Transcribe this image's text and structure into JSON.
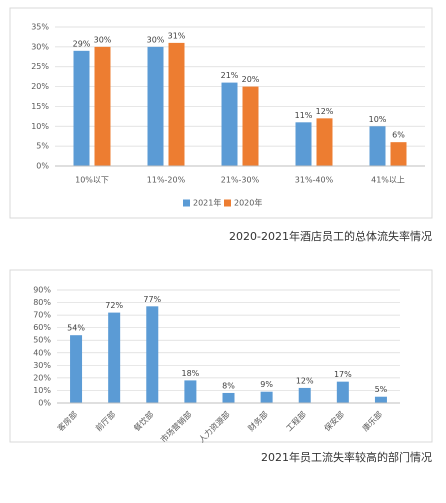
{
  "chart_data": [
    {
      "type": "bar",
      "title": "2020-2021年酒店员工的总体流失率情况",
      "categories": [
        "10%以下",
        "11%-20%",
        "21%-30%",
        "31%-40%",
        "41%以上"
      ],
      "series": [
        {
          "name": "2021年",
          "color": "#5b9bd5",
          "values": [
            29,
            30,
            21,
            11,
            10
          ],
          "value_labels": [
            "29%",
            "30%",
            "21%",
            "11%",
            "10%"
          ]
        },
        {
          "name": "2020年",
          "color": "#ed7d31",
          "values": [
            30,
            31,
            20,
            12,
            6
          ],
          "value_labels": [
            "30%",
            "31%",
            "20%",
            "12%",
            "6%"
          ]
        }
      ],
      "ylim": [
        0,
        35
      ],
      "yticks": [
        {
          "value": 0,
          "label": "0%"
        },
        {
          "value": 5,
          "label": "5%"
        },
        {
          "value": 10,
          "label": "10%"
        },
        {
          "value": 15,
          "label": "15%"
        },
        {
          "value": 20,
          "label": "20%"
        },
        {
          "value": 25,
          "label": "25%"
        },
        {
          "value": 30,
          "label": "30%"
        },
        {
          "value": 35,
          "label": "35%"
        }
      ],
      "grid": true,
      "legend": "bottom"
    },
    {
      "type": "bar",
      "title": "2021年员工流失率较高的部门情况",
      "categories": [
        "客房部",
        "前厅部",
        "餐饮部",
        "市场营销部",
        "人力资源部",
        "财务部",
        "工程部",
        "保安部",
        "康乐部"
      ],
      "values": [
        54,
        72,
        77,
        18,
        8,
        9,
        12,
        17,
        5
      ],
      "value_labels": [
        "54%",
        "72%",
        "77%",
        "18%",
        "8%",
        "9%",
        "12%",
        "17%",
        "5%"
      ],
      "color": "#5b9bd5",
      "ylim": [
        0,
        90
      ],
      "yticks": [
        {
          "value": 0,
          "label": "0%"
        },
        {
          "value": 10,
          "label": "10%"
        },
        {
          "value": 20,
          "label": "20%"
        },
        {
          "value": 30,
          "label": "30%"
        },
        {
          "value": 40,
          "label": "40%"
        },
        {
          "value": 50,
          "label": "50%"
        },
        {
          "value": 60,
          "label": "60%"
        },
        {
          "value": 70,
          "label": "70%"
        },
        {
          "value": 80,
          "label": "80%"
        },
        {
          "value": 90,
          "label": "90%"
        }
      ],
      "grid": true
    }
  ]
}
